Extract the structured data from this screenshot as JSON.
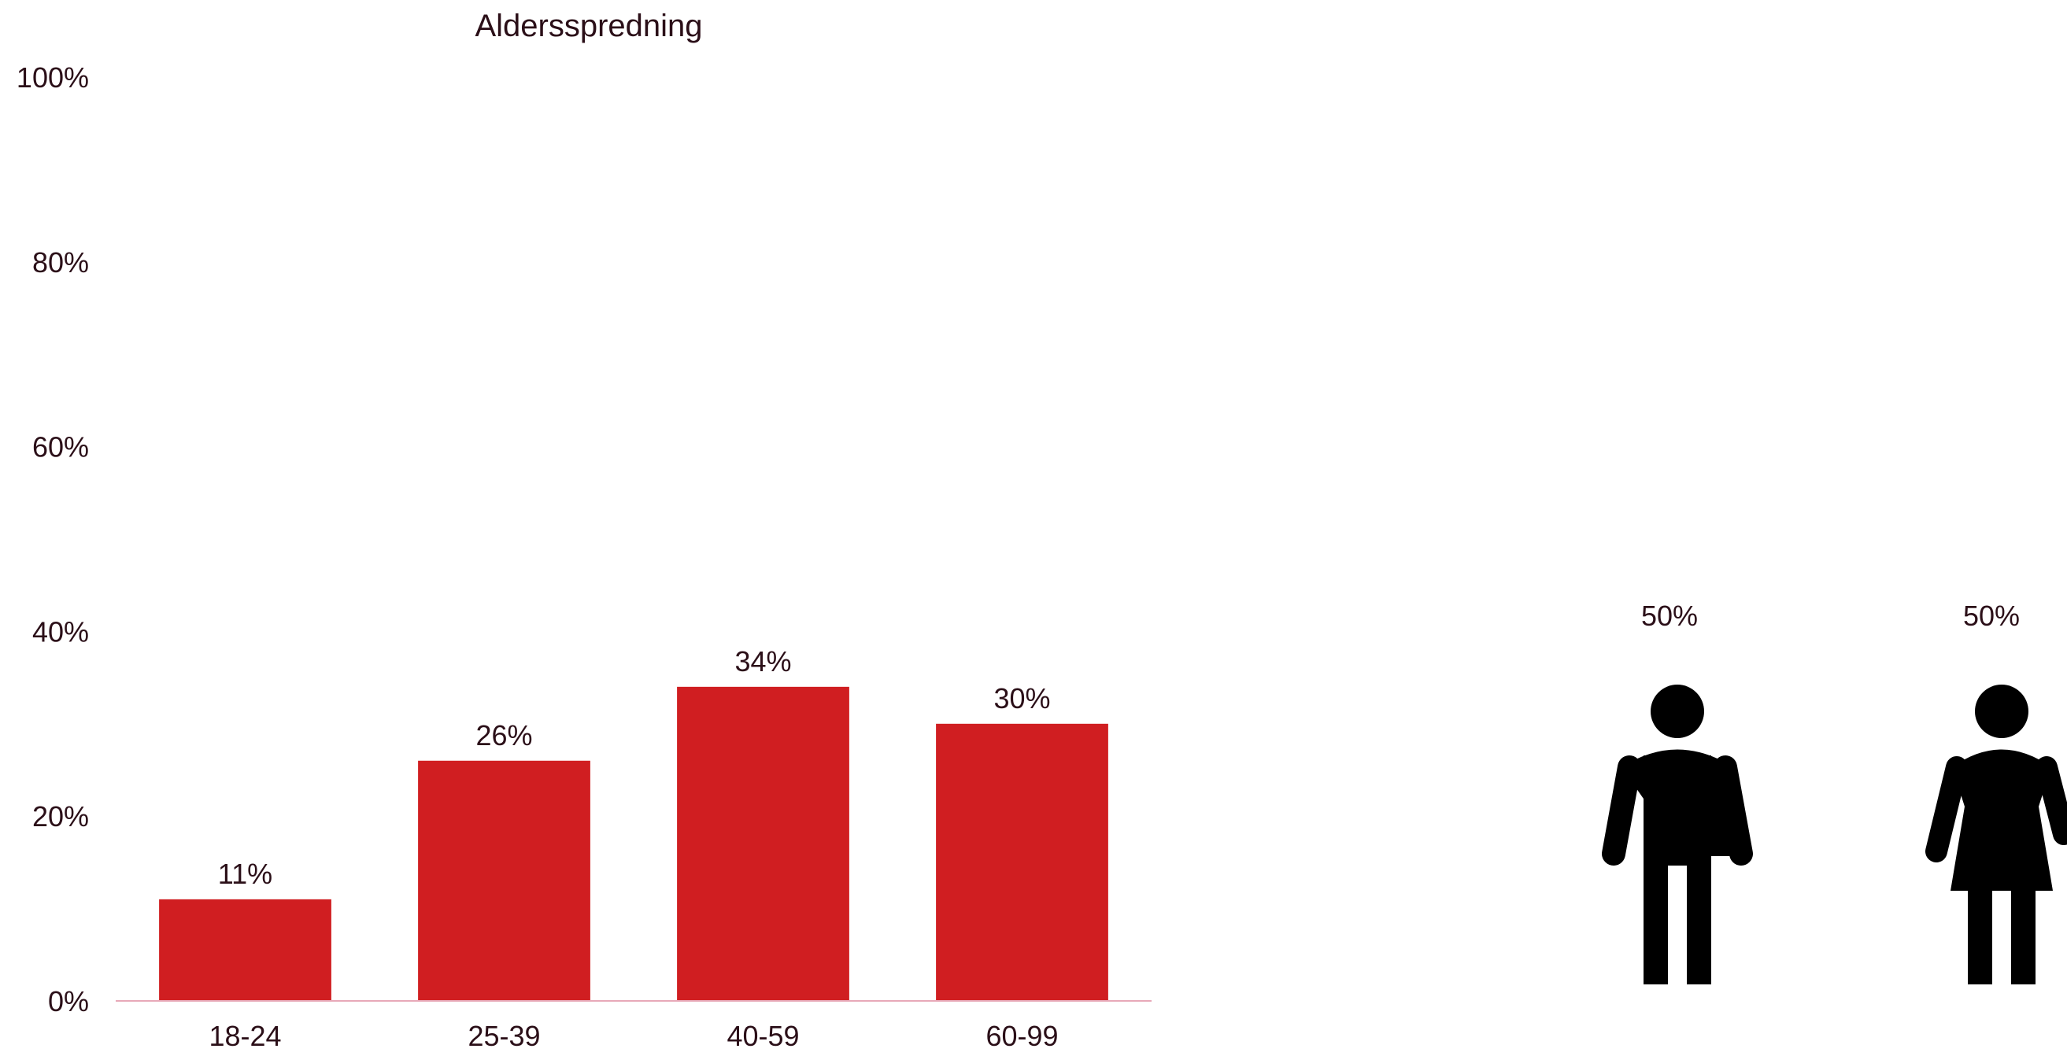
{
  "colors": {
    "bar": "#d01e21",
    "text": "#2b0f18",
    "axis_line": "#e8a9b9",
    "figure": "#000000"
  },
  "chart_data": [
    {
      "type": "bar",
      "title": "Aldersspredning",
      "categories": [
        "18-24",
        "25-39",
        "40-59",
        "60-99"
      ],
      "values": [
        11,
        26,
        34,
        30
      ],
      "data_labels": [
        "11%",
        "26%",
        "34%",
        "30%"
      ],
      "ylim": [
        0,
        100
      ],
      "yticks": [
        0,
        20,
        40,
        60,
        80,
        100
      ],
      "ytick_labels": [
        "0%",
        "20%",
        "40%",
        "60%",
        "80%",
        "100%"
      ],
      "xlabel": "",
      "ylabel": "",
      "grid": false,
      "legend": "none"
    },
    {
      "type": "pictograph",
      "items": [
        {
          "icon": "man-icon",
          "value": 50,
          "label": "50%"
        },
        {
          "icon": "woman-icon",
          "value": 50,
          "label": "50%"
        }
      ]
    }
  ]
}
